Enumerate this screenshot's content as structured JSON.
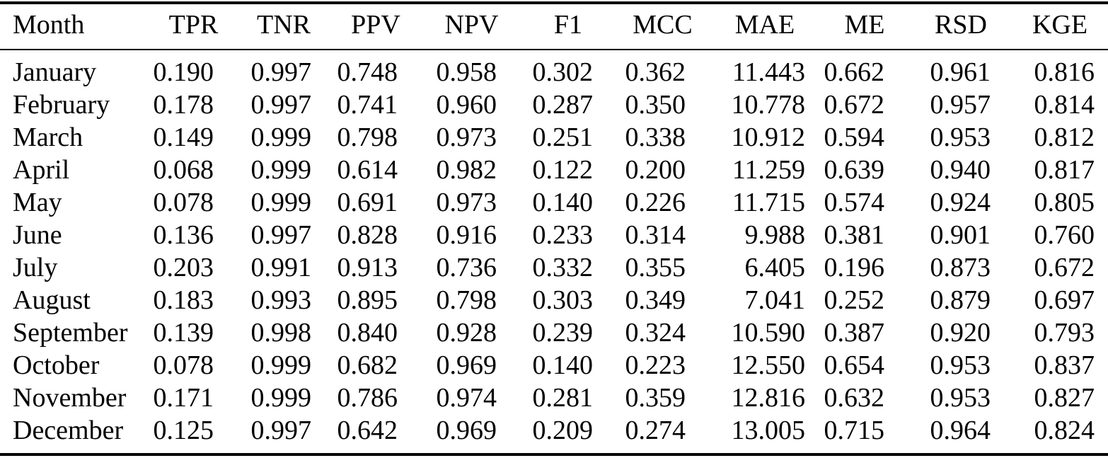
{
  "table": {
    "columns": [
      "Month",
      "TPR",
      "TNR",
      "PPV",
      "NPV",
      "F1",
      "MCC",
      "MAE",
      "ME",
      "RSD",
      "KGE"
    ],
    "rows": [
      [
        "January",
        "0.190",
        "0.997",
        "0.748",
        "0.958",
        "0.302",
        "0.362",
        "11.443",
        "0.662",
        "0.961",
        "0.816"
      ],
      [
        "February",
        "0.178",
        "0.997",
        "0.741",
        "0.960",
        "0.287",
        "0.350",
        "10.778",
        "0.672",
        "0.957",
        "0.814"
      ],
      [
        "March",
        "0.149",
        "0.999",
        "0.798",
        "0.973",
        "0.251",
        "0.338",
        "10.912",
        "0.594",
        "0.953",
        "0.812"
      ],
      [
        "April",
        "0.068",
        "0.999",
        "0.614",
        "0.982",
        "0.122",
        "0.200",
        "11.259",
        "0.639",
        "0.940",
        "0.817"
      ],
      [
        "May",
        "0.078",
        "0.999",
        "0.691",
        "0.973",
        "0.140",
        "0.226",
        "11.715",
        "0.574",
        "0.924",
        "0.805"
      ],
      [
        "June",
        "0.136",
        "0.997",
        "0.828",
        "0.916",
        "0.233",
        "0.314",
        "9.988",
        "0.381",
        "0.901",
        "0.760"
      ],
      [
        "July",
        "0.203",
        "0.991",
        "0.913",
        "0.736",
        "0.332",
        "0.355",
        "6.405",
        "0.196",
        "0.873",
        "0.672"
      ],
      [
        "August",
        "0.183",
        "0.993",
        "0.895",
        "0.798",
        "0.303",
        "0.349",
        "7.041",
        "0.252",
        "0.879",
        "0.697"
      ],
      [
        "September",
        "0.139",
        "0.998",
        "0.840",
        "0.928",
        "0.239",
        "0.324",
        "10.590",
        "0.387",
        "0.920",
        "0.793"
      ],
      [
        "October",
        "0.078",
        "0.999",
        "0.682",
        "0.969",
        "0.140",
        "0.223",
        "12.550",
        "0.654",
        "0.953",
        "0.837"
      ],
      [
        "November",
        "0.171",
        "0.999",
        "0.786",
        "0.974",
        "0.281",
        "0.359",
        "12.816",
        "0.632",
        "0.953",
        "0.827"
      ],
      [
        "December",
        "0.125",
        "0.997",
        "0.642",
        "0.969",
        "0.209",
        "0.274",
        "13.005",
        "0.715",
        "0.964",
        "0.824"
      ]
    ],
    "colors": {
      "text": "#000000",
      "background": "#ffffff",
      "rule": "#000000"
    }
  },
  "chart_data": {
    "type": "table",
    "title": "",
    "categories": [
      "January",
      "February",
      "March",
      "April",
      "May",
      "June",
      "July",
      "August",
      "September",
      "October",
      "November",
      "December"
    ],
    "series": [
      {
        "name": "TPR",
        "values": [
          0.19,
          0.178,
          0.149,
          0.068,
          0.078,
          0.136,
          0.203,
          0.183,
          0.139,
          0.078,
          0.171,
          0.125
        ]
      },
      {
        "name": "TNR",
        "values": [
          0.997,
          0.997,
          0.999,
          0.999,
          0.999,
          0.997,
          0.991,
          0.993,
          0.998,
          0.999,
          0.999,
          0.997
        ]
      },
      {
        "name": "PPV",
        "values": [
          0.748,
          0.741,
          0.798,
          0.614,
          0.691,
          0.828,
          0.913,
          0.895,
          0.84,
          0.682,
          0.786,
          0.642
        ]
      },
      {
        "name": "NPV",
        "values": [
          0.958,
          0.96,
          0.973,
          0.982,
          0.973,
          0.916,
          0.736,
          0.798,
          0.928,
          0.969,
          0.974,
          0.969
        ]
      },
      {
        "name": "F1",
        "values": [
          0.302,
          0.287,
          0.251,
          0.122,
          0.14,
          0.233,
          0.332,
          0.303,
          0.239,
          0.14,
          0.281,
          0.209
        ]
      },
      {
        "name": "MCC",
        "values": [
          0.362,
          0.35,
          0.338,
          0.2,
          0.226,
          0.314,
          0.355,
          0.349,
          0.324,
          0.223,
          0.359,
          0.274
        ]
      },
      {
        "name": "MAE",
        "values": [
          11.443,
          10.778,
          10.912,
          11.259,
          11.715,
          9.988,
          6.405,
          7.041,
          10.59,
          12.55,
          12.816,
          13.005
        ]
      },
      {
        "name": "ME",
        "values": [
          0.662,
          0.672,
          0.594,
          0.639,
          0.574,
          0.381,
          0.196,
          0.252,
          0.387,
          0.654,
          0.632,
          0.715
        ]
      },
      {
        "name": "RSD",
        "values": [
          0.961,
          0.957,
          0.953,
          0.94,
          0.924,
          0.901,
          0.873,
          0.879,
          0.92,
          0.953,
          0.953,
          0.964
        ]
      },
      {
        "name": "KGE",
        "values": [
          0.816,
          0.814,
          0.812,
          0.817,
          0.805,
          0.76,
          0.672,
          0.697,
          0.793,
          0.837,
          0.827,
          0.824
        ]
      }
    ]
  }
}
